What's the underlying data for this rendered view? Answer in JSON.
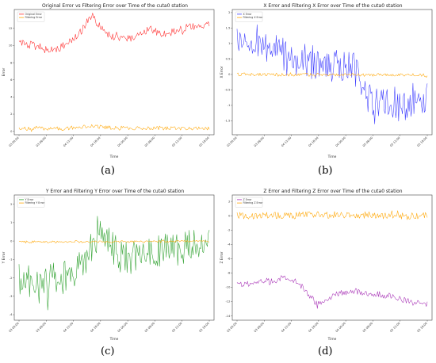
{
  "figure": {
    "panel_labels": [
      "(a)",
      "(b)",
      "(c)",
      "(d)"
    ]
  },
  "chart_data": [
    {
      "type": "line",
      "title": "Original Error vs Filtering Error over Time of the cuta0 station",
      "xlabel": "Time",
      "ylabel": "Error",
      "x_ticks": [
        "03 00:00",
        "03 06:00",
        "04 12:00",
        "04 18:00",
        "04 00:00",
        "05 06:00",
        "05 12:00",
        "05 18:00"
      ],
      "y_ticks": [
        0,
        2,
        4,
        6,
        8,
        10,
        12
      ],
      "ylim": [
        -0.4,
        14.2
      ],
      "grid": false,
      "legend_position": "top-left",
      "n_points": 200,
      "series": [
        {
          "name": "Original Error",
          "color": "#ff2a2a",
          "anchors": [
            [
              0,
              10.3
            ],
            [
              0.1,
              9.9
            ],
            [
              0.15,
              9.4
            ],
            [
              0.2,
              9.6
            ],
            [
              0.25,
              10.2
            ],
            [
              0.3,
              11.1
            ],
            [
              0.33,
              11.8
            ],
            [
              0.36,
              12.8
            ],
            [
              0.39,
              13.4
            ],
            [
              0.41,
              12.6
            ],
            [
              0.45,
              11.4
            ],
            [
              0.5,
              11.0
            ],
            [
              0.55,
              10.7
            ],
            [
              0.6,
              10.8
            ],
            [
              0.65,
              11.6
            ],
            [
              0.7,
              11.9
            ],
            [
              0.75,
              11.4
            ],
            [
              0.8,
              11.5
            ],
            [
              0.85,
              11.9
            ],
            [
              0.9,
              12.2
            ],
            [
              0.95,
              12.3
            ],
            [
              1.0,
              12.4
            ]
          ],
          "noise": 0.45
        },
        {
          "name": "Filtering Error",
          "color": "#ffa500",
          "anchors": [
            [
              0,
              0.3
            ],
            [
              0.25,
              0.35
            ],
            [
              0.38,
              0.6
            ],
            [
              0.5,
              0.4
            ],
            [
              0.75,
              0.35
            ],
            [
              1.0,
              0.3
            ]
          ],
          "noise": 0.22
        }
      ]
    },
    {
      "type": "line",
      "title": "X Error and Filtering X Error over Time of the cuta0 station",
      "xlabel": "Time",
      "ylabel": "X Error",
      "x_ticks": [
        "03 00:00",
        "03 06:00",
        "04 12:00",
        "04 18:00",
        "04 00:00",
        "05 06:00",
        "05 12:00",
        "05 18:00"
      ],
      "y_ticks": [
        -1.5,
        -1.0,
        -0.5,
        0.0,
        0.5,
        1.0,
        1.5,
        2.0
      ],
      "ylim": [
        -1.95,
        2.1
      ],
      "grid": false,
      "legend_position": "top-left",
      "n_points": 200,
      "series": [
        {
          "name": "X Error",
          "color": "#3a3aff",
          "anchors": [
            [
              0,
              1.1
            ],
            [
              0.08,
              1.2
            ],
            [
              0.15,
              0.9
            ],
            [
              0.2,
              0.8
            ],
            [
              0.3,
              0.5
            ],
            [
              0.4,
              0.4
            ],
            [
              0.5,
              0.3
            ],
            [
              0.6,
              0.2
            ],
            [
              0.64,
              0.1
            ],
            [
              0.68,
              -0.6
            ],
            [
              0.72,
              -0.9
            ],
            [
              0.8,
              -0.8
            ],
            [
              0.85,
              -1.0
            ],
            [
              0.9,
              -0.9
            ],
            [
              0.95,
              -0.7
            ],
            [
              1.0,
              -0.8
            ]
          ],
          "noise": 0.55
        },
        {
          "name": "Filtering X Error",
          "color": "#ffa500",
          "anchors": [
            [
              0,
              0.0
            ],
            [
              1.0,
              -0.02
            ]
          ],
          "noise": 0.05
        }
      ]
    },
    {
      "type": "line",
      "title": "Y Error and Filtering Y Error over Time of the cuta0 station",
      "xlabel": "Time",
      "ylabel": "Y Error",
      "x_ticks": [
        "03 00:00",
        "03 06:00",
        "04 12:00",
        "04 18:00",
        "04 00:00",
        "05 06:00",
        "05 12:00",
        "05 18:00"
      ],
      "y_ticks": [
        -4,
        -3,
        -2,
        -1,
        0,
        1,
        2
      ],
      "ylim": [
        -4.3,
        2.5
      ],
      "grid": false,
      "legend_position": "top-left",
      "n_points": 200,
      "series": [
        {
          "name": "Y Error",
          "color": "#2ca02c",
          "anchors": [
            [
              0,
              -2.0
            ],
            [
              0.1,
              -2.3
            ],
            [
              0.2,
              -2.1
            ],
            [
              0.28,
              -1.9
            ],
            [
              0.35,
              -1.0
            ],
            [
              0.42,
              0.6
            ],
            [
              0.47,
              0.0
            ],
            [
              0.52,
              -0.8
            ],
            [
              0.58,
              -1.0
            ],
            [
              0.65,
              -0.6
            ],
            [
              0.72,
              -0.5
            ],
            [
              0.8,
              -0.6
            ],
            [
              0.88,
              -0.4
            ],
            [
              0.95,
              0.0
            ],
            [
              1.0,
              -0.4
            ]
          ],
          "noise": 0.95
        },
        {
          "name": "Filtering Y Error",
          "color": "#ffa500",
          "anchors": [
            [
              0,
              -0.05
            ],
            [
              1.0,
              -0.02
            ]
          ],
          "noise": 0.06
        }
      ]
    },
    {
      "type": "line",
      "title": "Z Error and Filtering Z Error over Time of the cuta0 station",
      "xlabel": "Time",
      "ylabel": "Z Error",
      "x_ticks": [
        "03 00:00",
        "03 06:00",
        "04 12:00",
        "04 18:00",
        "04 00:00",
        "05 06:00",
        "05 12:00",
        "05 18:00"
      ],
      "y_ticks": [
        -14,
        -12,
        -10,
        -8,
        -6,
        -4,
        -2,
        0,
        2
      ],
      "ylim": [
        -14.6,
        2.9
      ],
      "grid": false,
      "legend_position": "top-left",
      "n_points": 200,
      "series": [
        {
          "name": "Z Error",
          "color": "#a62fb5",
          "anchors": [
            [
              0,
              -9.7
            ],
            [
              0.1,
              -9.3
            ],
            [
              0.2,
              -9.0
            ],
            [
              0.27,
              -8.6
            ],
            [
              0.33,
              -9.5
            ],
            [
              0.37,
              -11.0
            ],
            [
              0.42,
              -12.2
            ],
            [
              0.46,
              -11.8
            ],
            [
              0.5,
              -11.2
            ],
            [
              0.55,
              -10.8
            ],
            [
              0.6,
              -10.5
            ],
            [
              0.68,
              -10.8
            ],
            [
              0.75,
              -11.0
            ],
            [
              0.82,
              -11.3
            ],
            [
              0.88,
              -11.8
            ],
            [
              0.94,
              -12.2
            ],
            [
              1.0,
              -12.3
            ]
          ],
          "noise": 0.45
        },
        {
          "name": "Filtering Z Error",
          "color": "#ffa500",
          "anchors": [
            [
              0,
              0.0
            ],
            [
              0.5,
              0.1
            ],
            [
              1.0,
              0.0
            ]
          ],
          "noise": 0.5
        }
      ]
    }
  ]
}
